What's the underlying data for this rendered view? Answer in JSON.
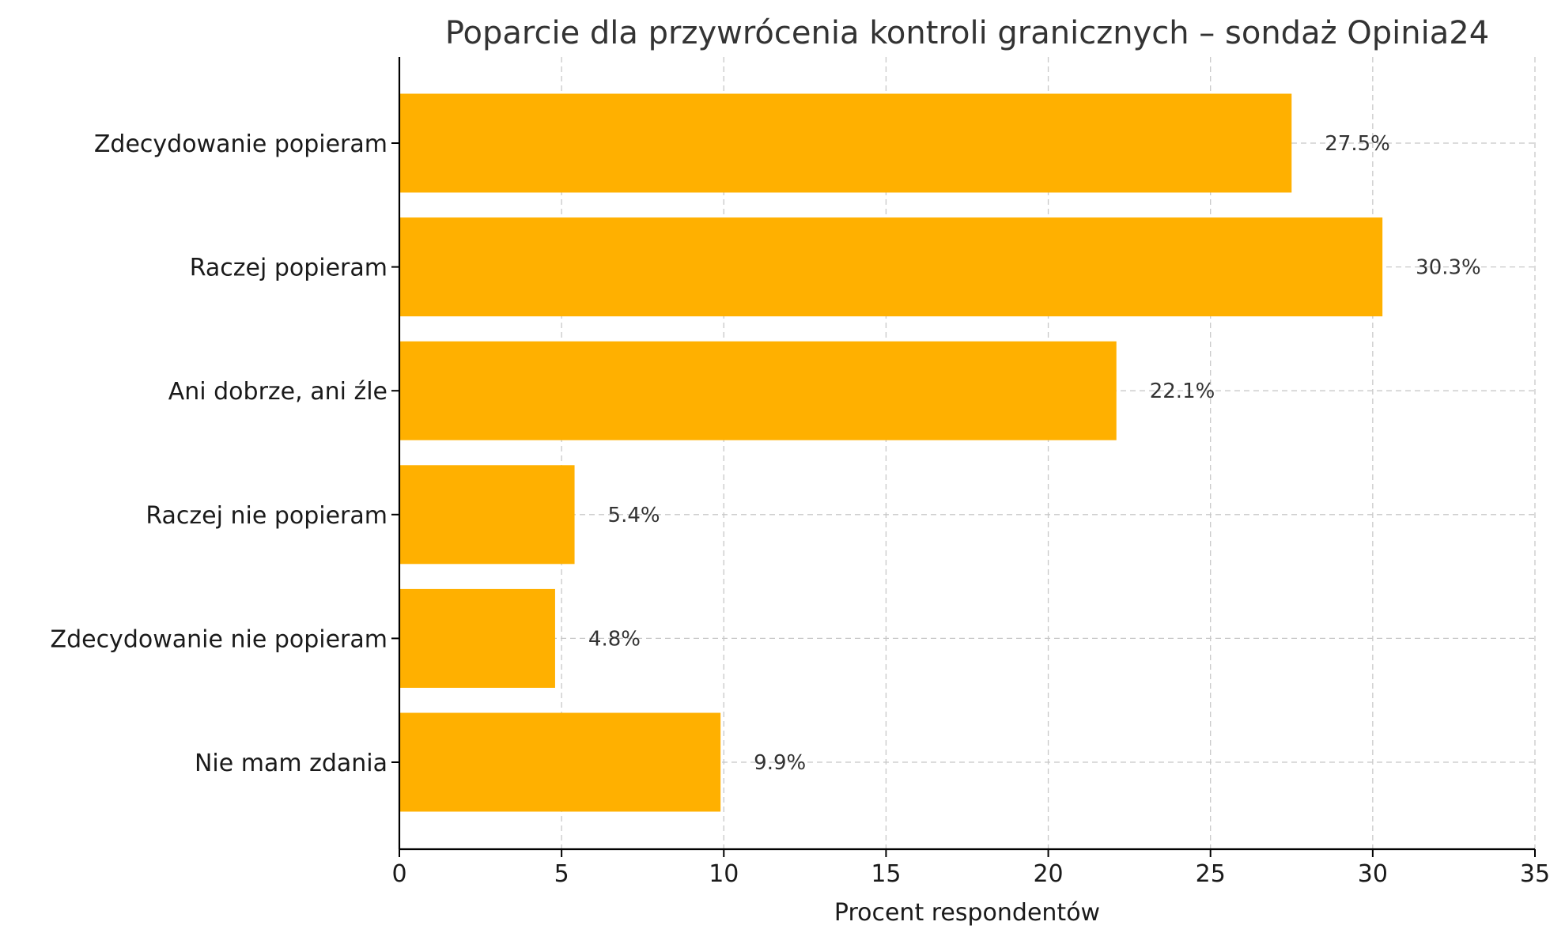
{
  "chart_data": {
    "type": "bar",
    "orientation": "horizontal",
    "title": "Poparcie dla przywrócenia kontroli granicznych – sondaż Opinia24",
    "xlabel": "Procent respondentów",
    "ylabel": "",
    "categories": [
      "Zdecydowanie popieram",
      "Raczej popieram",
      "Ani dobrze, ani źle",
      "Raczej nie popieram",
      "Zdecydowanie nie popieram",
      "Nie mam zdania"
    ],
    "values": [
      27.5,
      30.3,
      22.1,
      5.4,
      4.8,
      9.9
    ],
    "value_labels": [
      "27.5%",
      "30.3%",
      "22.1%",
      "5.4%",
      "4.8%",
      "9.9%"
    ],
    "xlim": [
      0,
      35
    ],
    "xticks": [
      0,
      5,
      10,
      15,
      20,
      25,
      30,
      35
    ],
    "xtick_labels": [
      "0",
      "5",
      "10",
      "15",
      "20",
      "25",
      "30",
      "35"
    ],
    "grid": true,
    "bar_color": "#FFB000"
  }
}
